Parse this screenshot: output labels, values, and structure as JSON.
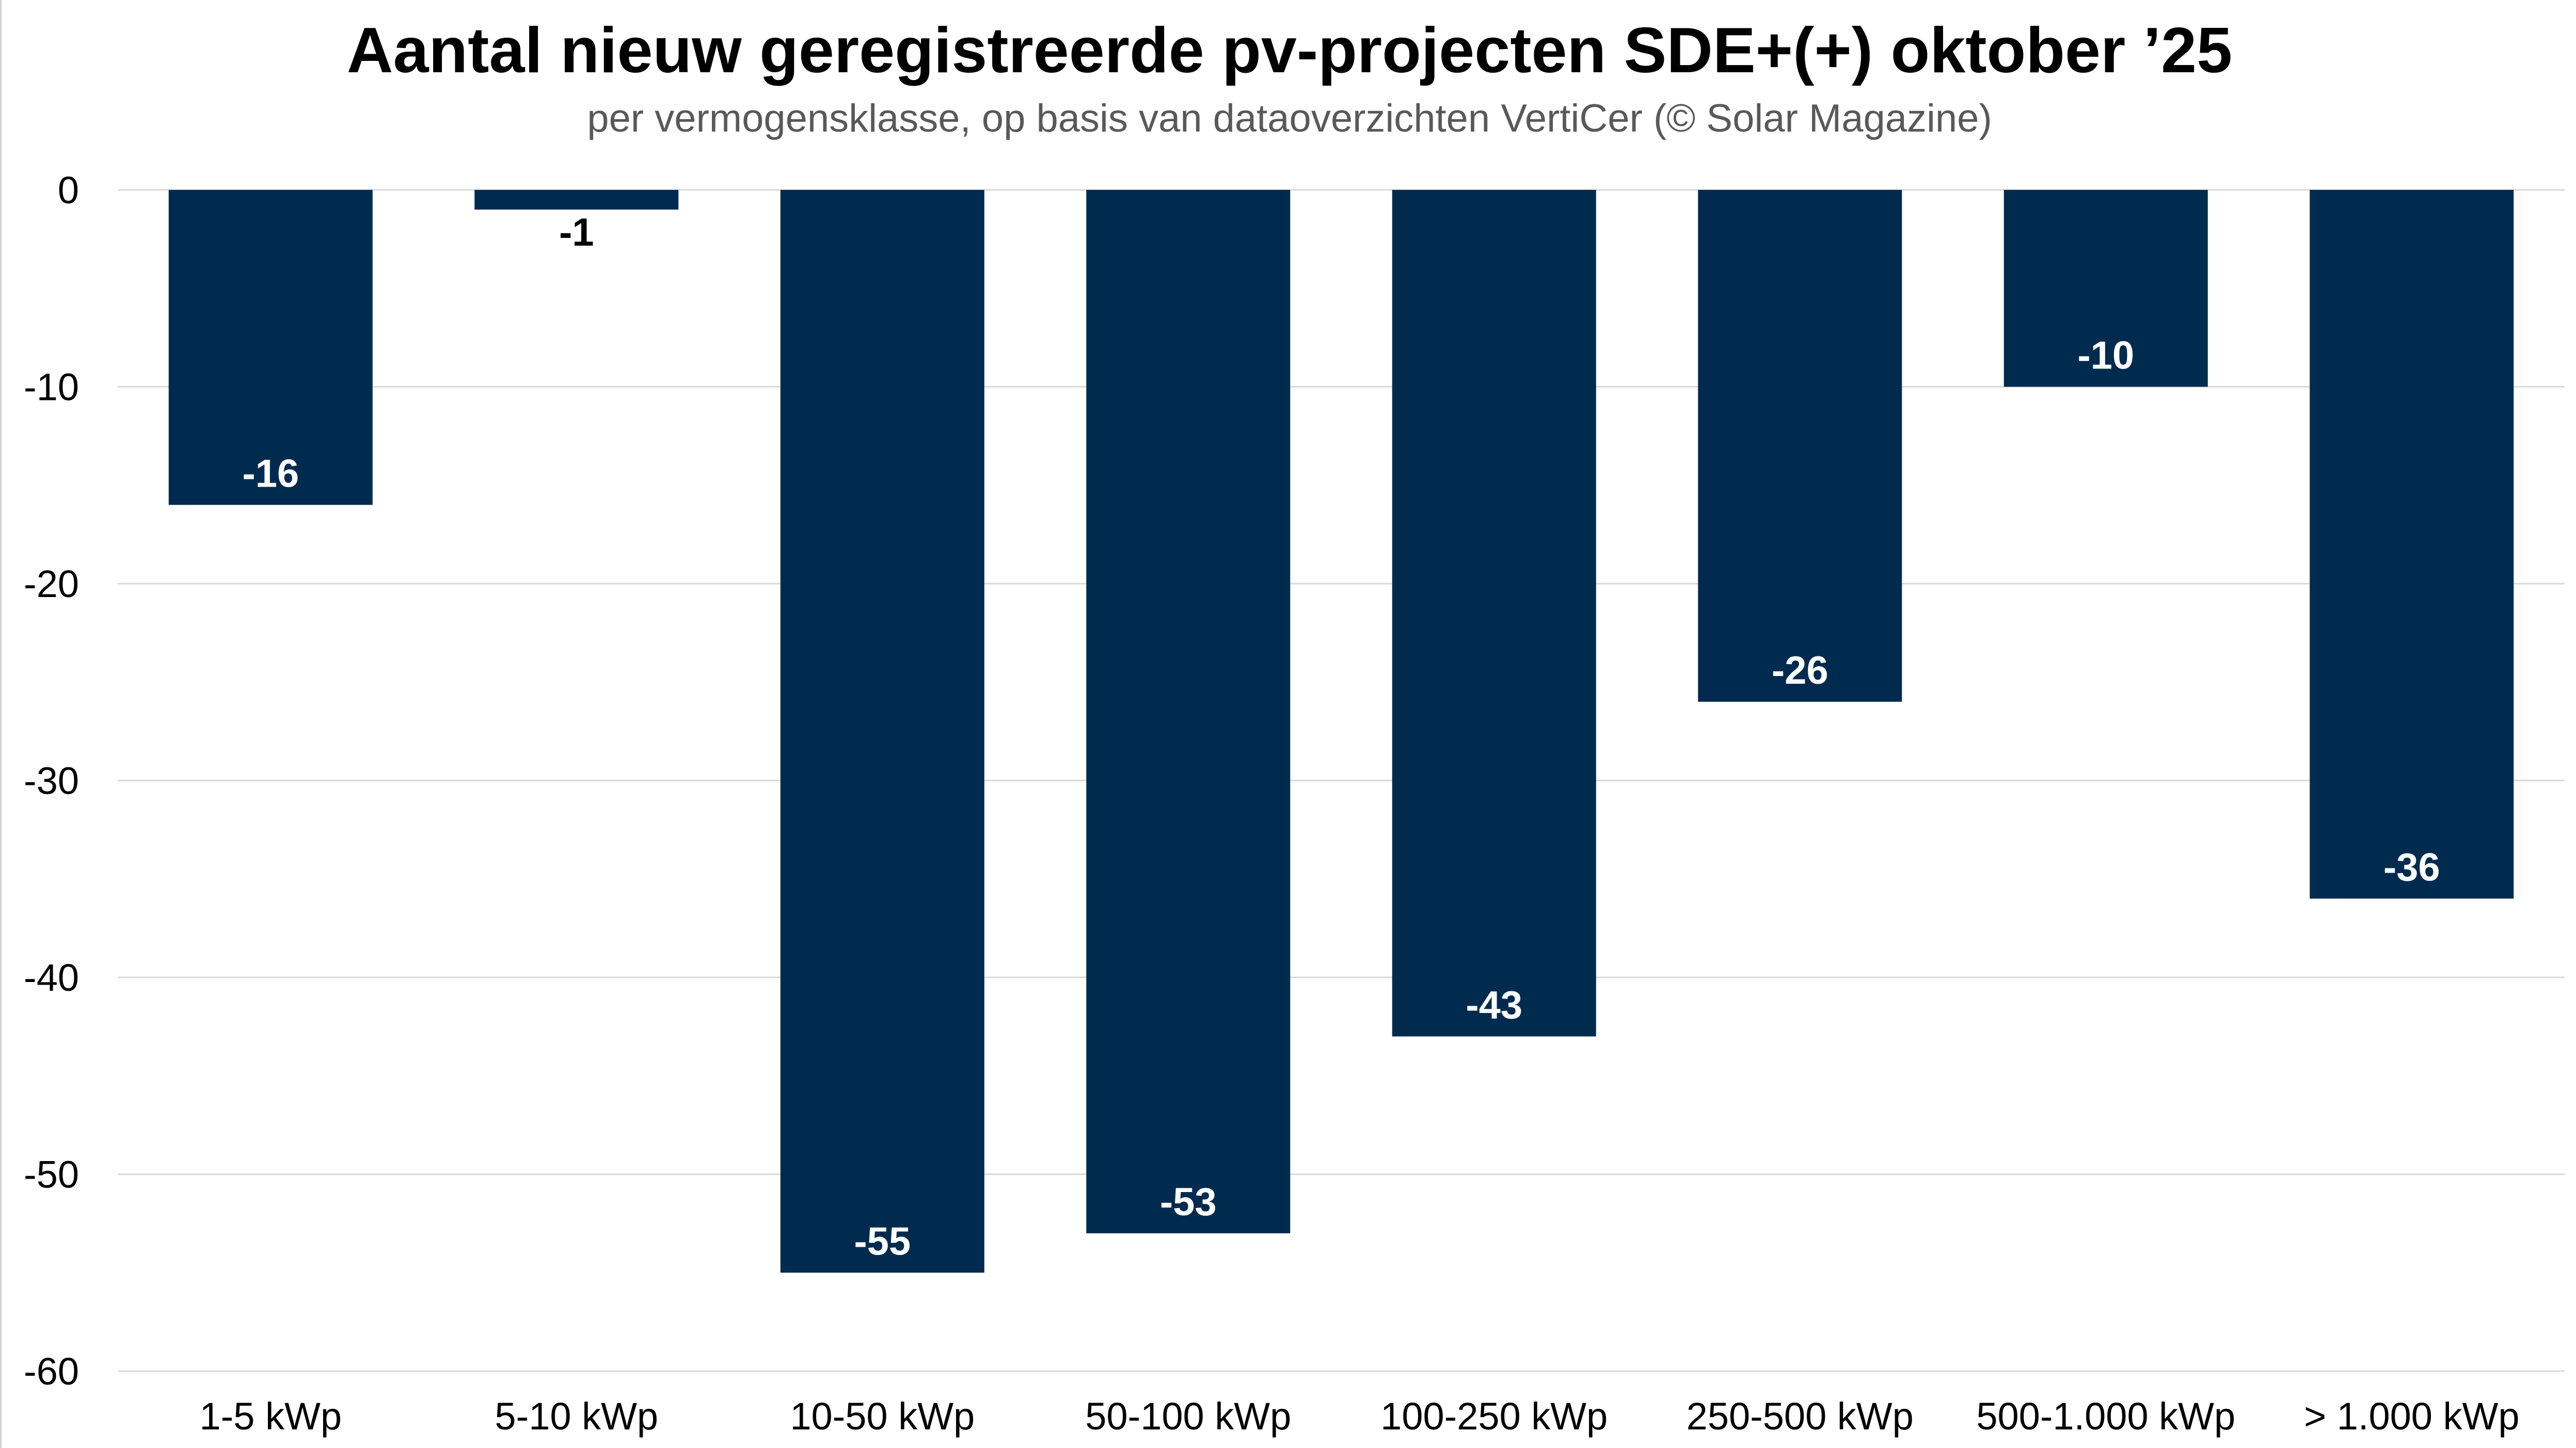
{
  "chart_data": {
    "type": "bar",
    "title": "Aantal nieuw geregistreerde pv-projecten SDE+(+) oktober ’25",
    "subtitle": "per vermogensklasse, op basis van dataoverzichten VertiCer (© Solar Magazine)",
    "xlabel": "",
    "ylabel": "",
    "categories": [
      "1-5 kWp",
      "5-10 kWp",
      "10-50 kWp",
      "50-100 kWp",
      "100-250 kWp",
      "250-500 kWp",
      "500-1.000 kWp",
      "> 1.000 kWp"
    ],
    "values": [
      -16,
      -1,
      -55,
      -53,
      -43,
      -26,
      -10,
      -36
    ],
    "data_labels": [
      "-16",
      "-1",
      "-55",
      "-53",
      "-43",
      "-26",
      "-10",
      "-36"
    ],
    "ylim": [
      -60,
      0
    ],
    "yticks": [
      0,
      -10,
      -20,
      -30,
      -40,
      -50,
      -60
    ],
    "ytick_labels": [
      "0",
      "-10",
      "-20",
      "-30",
      "-40",
      "-50",
      "-60"
    ],
    "grid": true,
    "legend": "none",
    "colors": {
      "bar": "#002b4f",
      "label_inside": "#ffffff",
      "label_outside": "#000000",
      "grid": "#d9d9d9"
    }
  }
}
